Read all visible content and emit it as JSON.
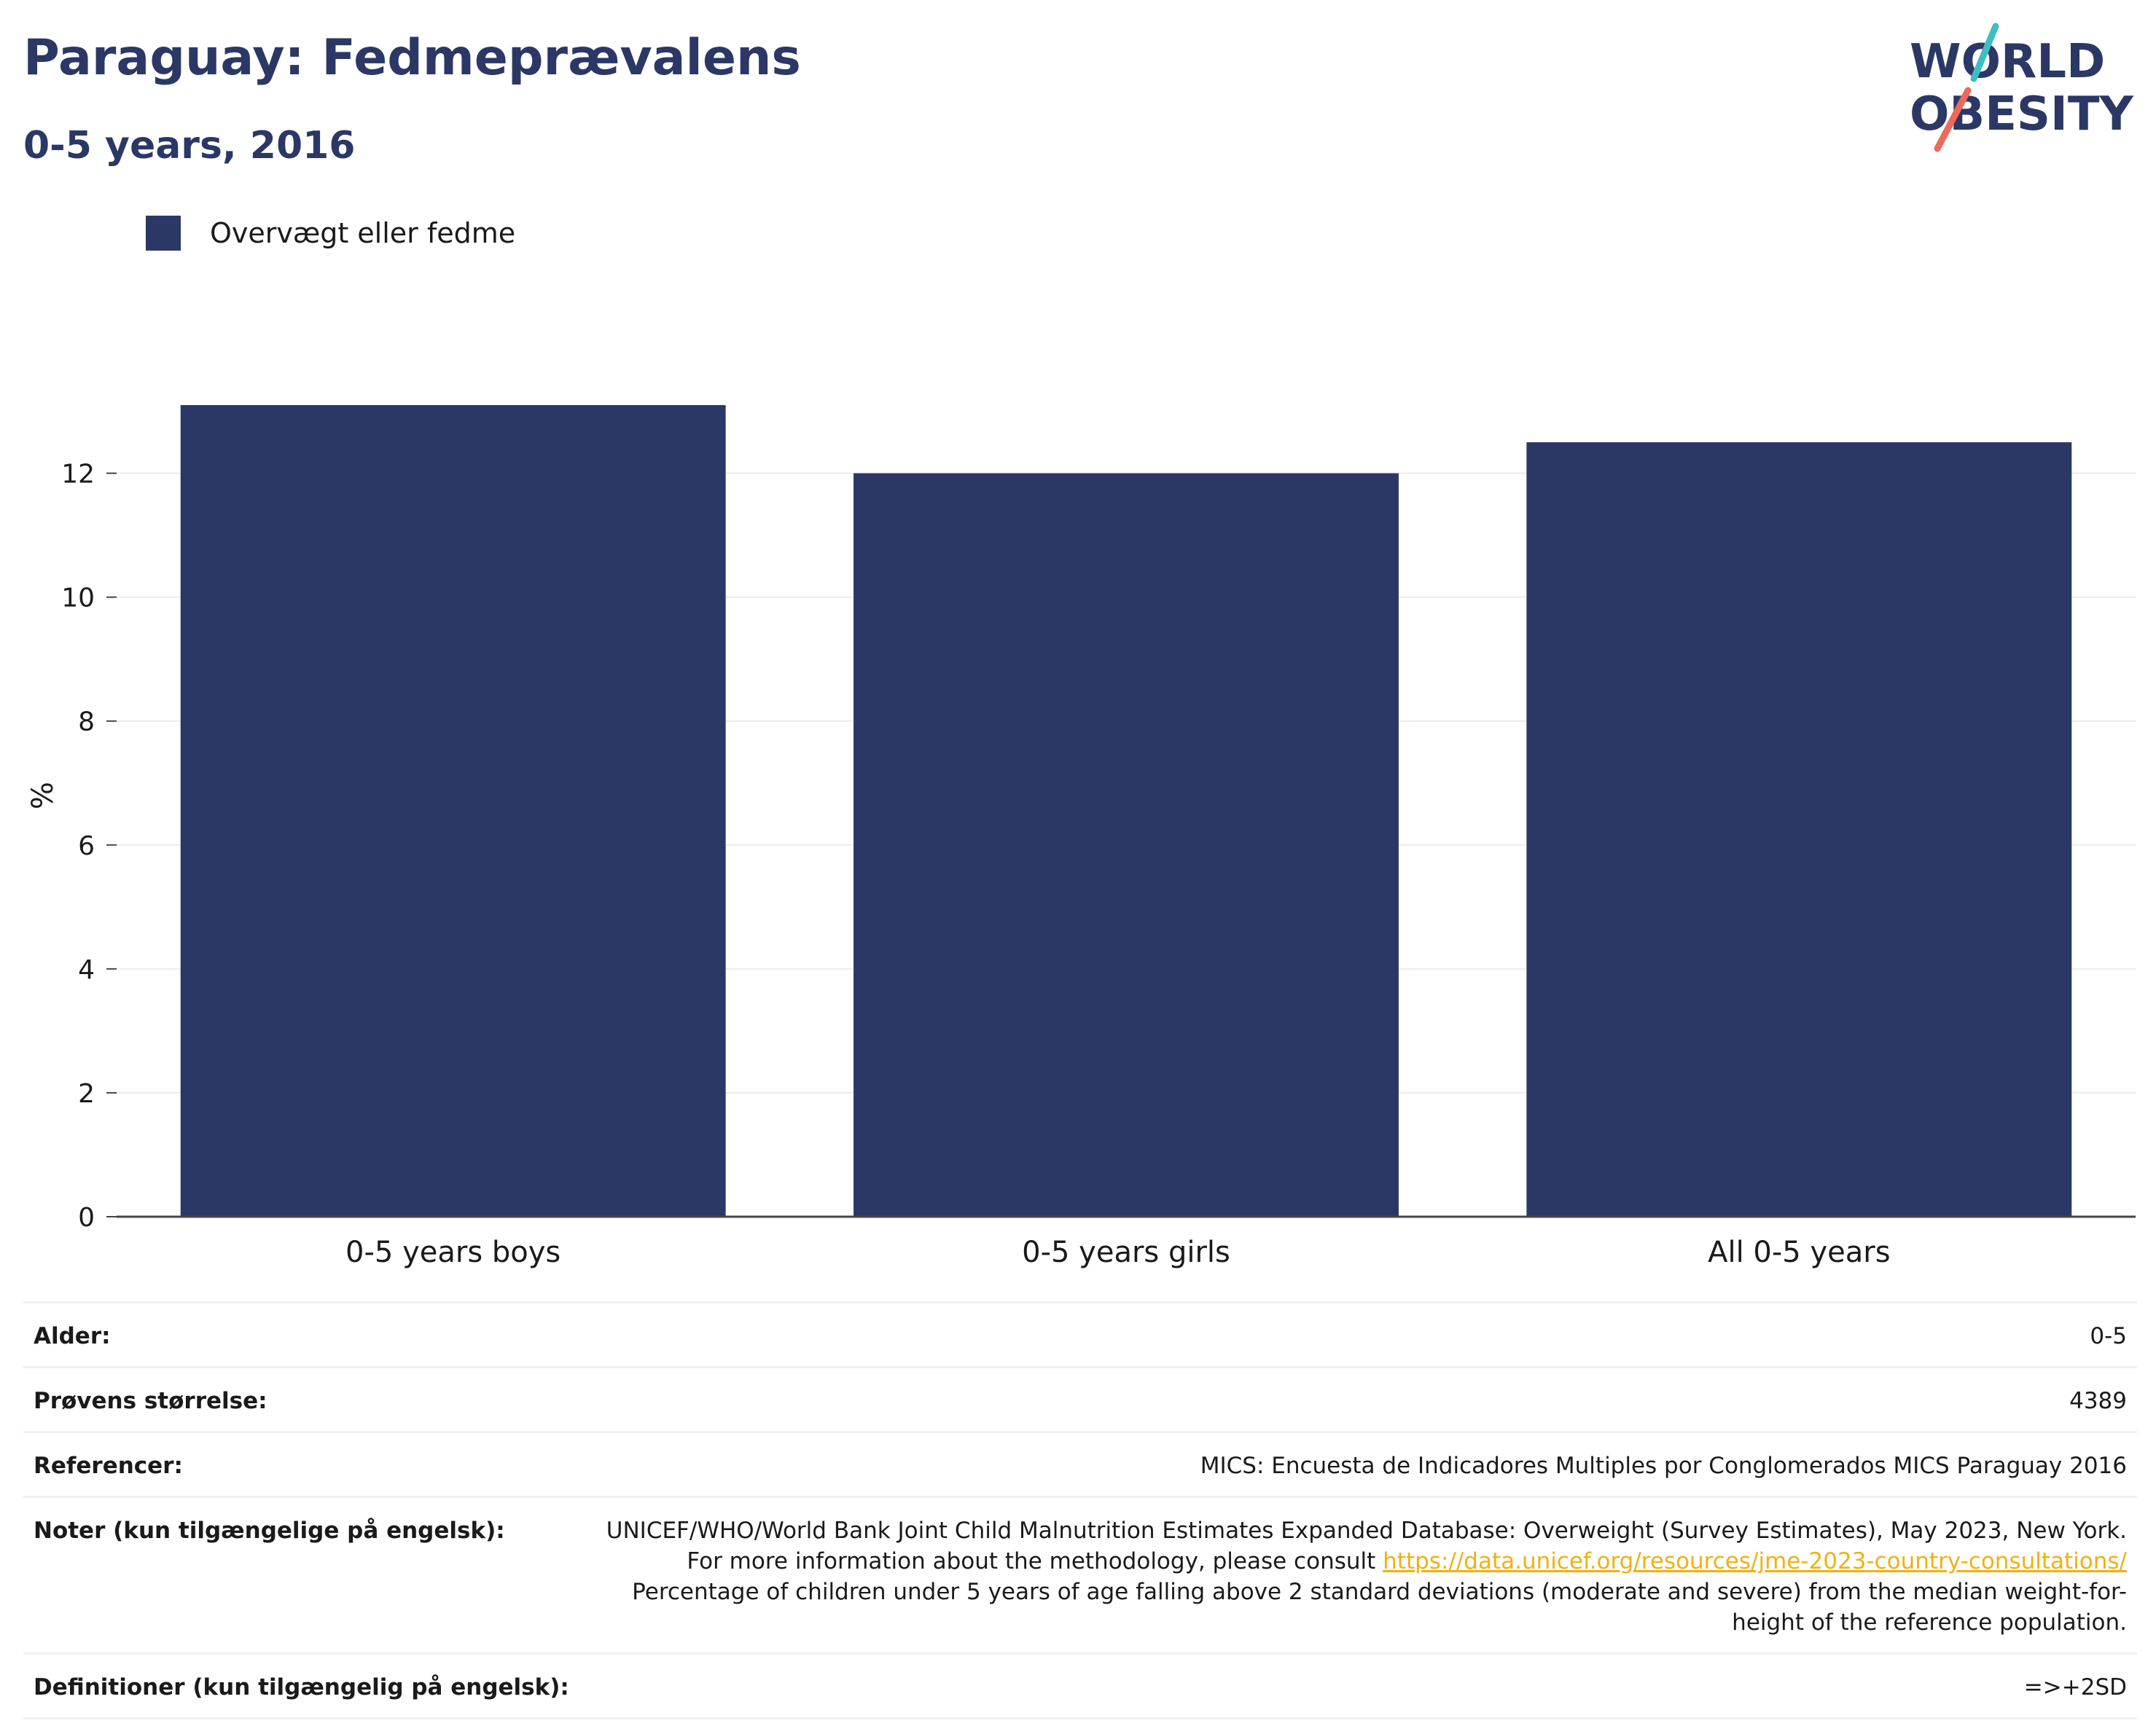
{
  "header": {
    "title": "Paraguay: Fedmeprævalens",
    "subtitle": "0-5 years, 2016"
  },
  "logo": {
    "line1": "WORLD",
    "line2": "OBESITY",
    "colors": {
      "text": "#2b3866",
      "slash_top": "#3cbfc0",
      "slash_bottom": "#ee6a58"
    }
  },
  "legend": {
    "label": "Overvægt eller fedme",
    "color": "#2b3866"
  },
  "chart_data": {
    "type": "bar",
    "categories": [
      "0-5 years boys",
      "0-5 years girls",
      "All 0-5 years"
    ],
    "series": [
      {
        "name": "Overvægt eller fedme",
        "values": [
          13.1,
          12.0,
          12.5
        ],
        "color": "#2b3866"
      }
    ],
    "ylabel": "%",
    "xlabel": "",
    "ylim": [
      0,
      13.5
    ],
    "yticks": [
      0,
      2,
      4,
      6,
      8,
      10,
      12
    ],
    "grid": true,
    "legend_position": "top-left"
  },
  "table": {
    "age_label": "Alder:",
    "age_value": "0-5",
    "sample_label": "Prøvens størrelse:",
    "sample_value": "4389",
    "refs_label": "Referencer:",
    "refs_value": "MICS: Encuesta de Indicadores Multiples por Conglomerados MICS Paraguay 2016",
    "notes_label": "Noter (kun tilgængelige på engelsk):",
    "notes_pre": "UNICEF/WHO/World Bank Joint Child Malnutrition Estimates Expanded Database: Overweight (Survey Estimates), May 2023, New York. For more information about the methodology, please consult",
    "notes_link": "https://data.unicef.org/resources/jme-2023-country-consultations/",
    "notes_post": "Percentage of children under 5 years of age falling above 2 standard deviations (moderate and severe) from the median weight-for-height of the reference population.",
    "defs_label": "Definitioner (kun tilgængelig på engelsk):",
    "defs_value": "=>+2SD"
  }
}
